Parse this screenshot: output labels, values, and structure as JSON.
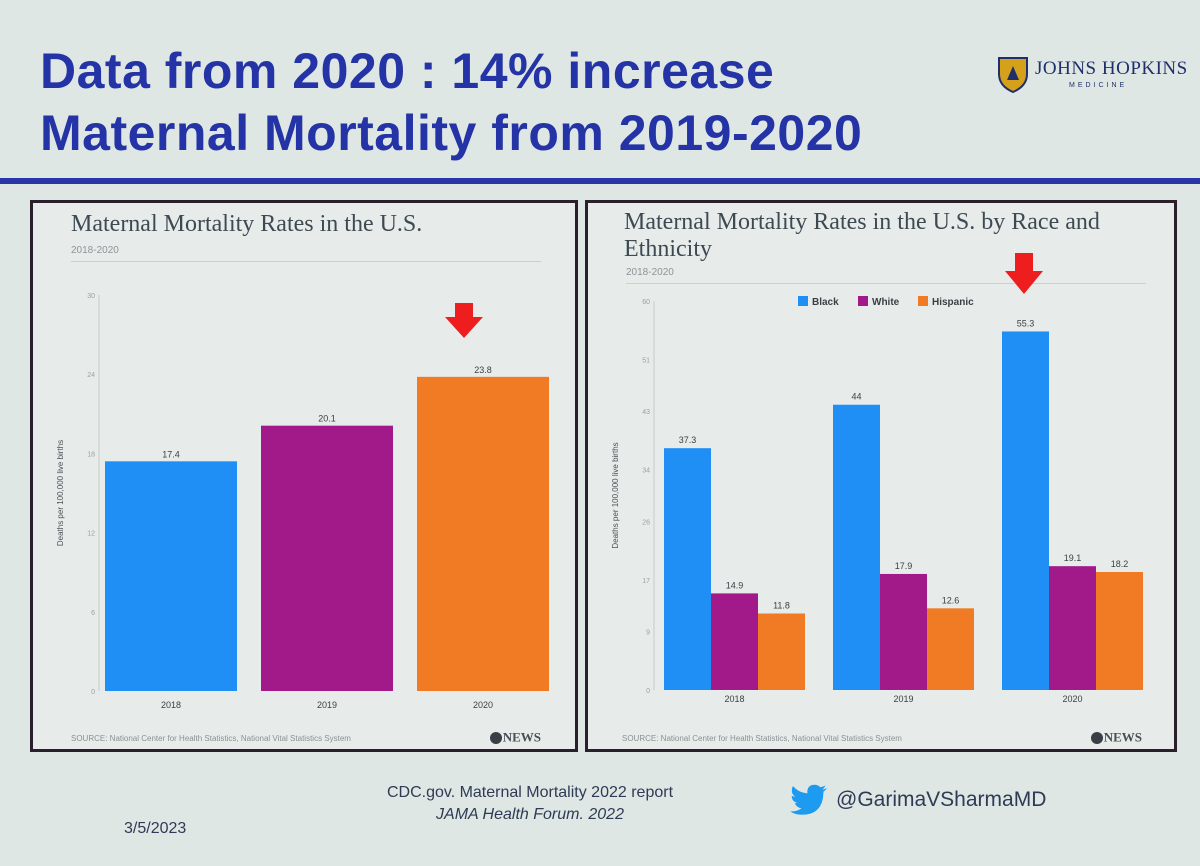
{
  "slide": {
    "title_line1": "Data from 2020 : 14% increase",
    "title_line2": "Maternal Mortality from 2019-2020",
    "logo_text": "JOHNS HOPKINS",
    "logo_sub": "MEDICINE",
    "reference_line1": "CDC.gov. Maternal Mortality 2022 report",
    "reference_line2": "JAMA Health Forum. 2022",
    "date": "3/5/2023",
    "twitter_handle": "@GarimaVSharmaMD",
    "title_color": "#2433a6"
  },
  "left_panel": {
    "source": "SOURCE: National Center for Health Statistics, National Vital Statistics System",
    "brand": "NEWS"
  },
  "right_panel": {
    "source": "SOURCE: National Center for Health Statistics, National Vital Statistics System",
    "brand": "NEWS"
  },
  "chart_data": [
    {
      "type": "bar",
      "title": "Maternal Mortality Rates in the U.S.",
      "subtitle": "2018-2020",
      "ylabel": "Deaths per 100,000 live births",
      "categories": [
        "2018",
        "2019",
        "2020"
      ],
      "values": [
        17.4,
        20.1,
        23.8
      ],
      "data_labels": [
        "17.4",
        "20.1",
        "23.8"
      ],
      "colors": [
        "#1f8ff6",
        "#a2198a",
        "#f07b24"
      ],
      "ylim": [
        0,
        30
      ],
      "yticks": [
        0,
        6,
        12,
        18,
        24,
        30
      ],
      "highlight": "2020",
      "grid": false
    },
    {
      "type": "bar",
      "title": "Maternal Mortality Rates in the U.S. by Race and Ethnicity",
      "subtitle": "2018-2020",
      "ylabel": "Deaths per 100,000 live births",
      "categories": [
        "2018",
        "2019",
        "2020"
      ],
      "series": [
        {
          "name": "Black",
          "color": "#1f8ff6",
          "values": [
            37.3,
            44,
            55.3
          ],
          "labels": [
            "37.3",
            "44",
            "55.3"
          ]
        },
        {
          "name": "White",
          "color": "#a2198a",
          "values": [
            14.9,
            17.9,
            19.1
          ],
          "labels": [
            "14.9",
            "17.9",
            "19.1"
          ]
        },
        {
          "name": "Hispanic",
          "color": "#f07b24",
          "values": [
            11.8,
            12.6,
            18.2
          ],
          "labels": [
            "11.8",
            "12.6",
            "18.2"
          ]
        }
      ],
      "ylim": [
        0,
        60
      ],
      "yticks": [
        0,
        9,
        17,
        26,
        34,
        43,
        51,
        60
      ],
      "legend": "top-center",
      "highlight": "2020",
      "grid": false
    }
  ]
}
